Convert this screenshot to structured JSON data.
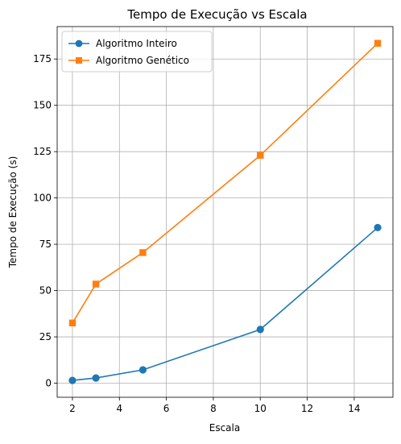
{
  "chart_data": {
    "type": "line",
    "title": "Tempo de Execução vs Escala",
    "xlabel": "Escala",
    "ylabel": "Tempo de Execução (s)",
    "xlim": [
      1.35,
      15.65
    ],
    "ylim": [
      -7.6,
      192.5
    ],
    "xticks": [
      2,
      4,
      6,
      8,
      10,
      12,
      14
    ],
    "yticks": [
      0,
      25,
      50,
      75,
      100,
      125,
      150,
      175
    ],
    "grid": true,
    "legend_position": "top-left",
    "series": [
      {
        "name": "Algoritmo Inteiro",
        "color": "#1f77b4",
        "marker": "circle",
        "x": [
          2,
          3,
          5,
          10,
          15
        ],
        "y": [
          1.5,
          2.8,
          7.2,
          29.0,
          84.0
        ]
      },
      {
        "name": "Algoritmo Genético",
        "color": "#ff7f0e",
        "marker": "square",
        "x": [
          2,
          3,
          5,
          10,
          15
        ],
        "y": [
          32.5,
          53.5,
          70.5,
          123.0,
          183.5
        ]
      }
    ]
  }
}
